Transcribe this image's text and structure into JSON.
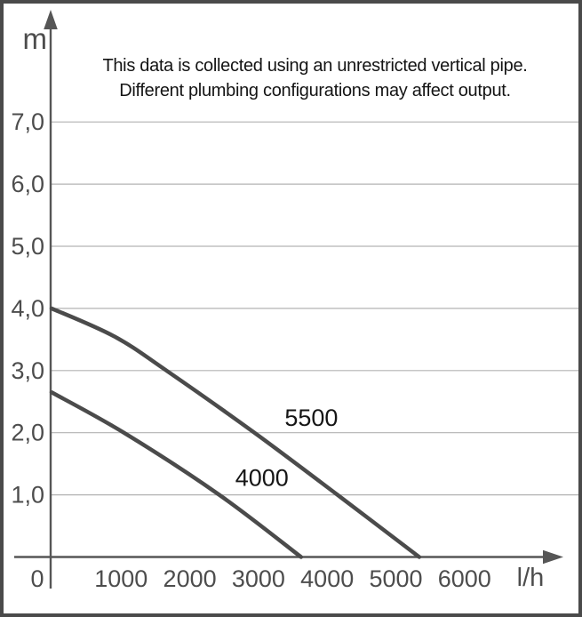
{
  "annotation": {
    "line1": "This data is collected using an unrestricted vertical pipe.",
    "line2": "Different plumbing configurations may affect output."
  },
  "chart_data": {
    "type": "line",
    "title": "",
    "xlabel": "l/h",
    "ylabel": "m",
    "xlim": [
      0,
      7400
    ],
    "ylim": [
      0,
      8
    ],
    "grid": "horizontal",
    "legend": "inline-curve-labels",
    "x_ticks": [
      {
        "value": 0,
        "label": "0"
      },
      {
        "value": 1000,
        "label": "1000"
      },
      {
        "value": 2000,
        "label": "2000"
      },
      {
        "value": 3000,
        "label": "3000"
      },
      {
        "value": 4000,
        "label": "4000"
      },
      {
        "value": 5000,
        "label": "5000"
      },
      {
        "value": 6000,
        "label": "6000"
      }
    ],
    "y_ticks": [
      {
        "value": 1,
        "label": "1,0"
      },
      {
        "value": 2,
        "label": "2,0"
      },
      {
        "value": 3,
        "label": "3,0"
      },
      {
        "value": 4,
        "label": "4,0"
      },
      {
        "value": 5,
        "label": "5,0"
      },
      {
        "value": 6,
        "label": "6,0"
      },
      {
        "value": 7,
        "label": "7,0"
      }
    ],
    "series": [
      {
        "name": "5500",
        "label": "5500",
        "label_at": [
          3770,
          2.24
        ],
        "points": [
          [
            0,
            4.0
          ],
          [
            900,
            3.55
          ],
          [
            1660,
            3.0
          ],
          [
            2940,
            2.0
          ],
          [
            4150,
            1.0
          ],
          [
            5340,
            0.0
          ]
        ]
      },
      {
        "name": "4000",
        "label": "4000",
        "label_at": [
          3050,
          1.27
        ],
        "points": [
          [
            0,
            2.65
          ],
          [
            1040,
            2.0
          ],
          [
            2430,
            1.0
          ],
          [
            3620,
            0.0
          ]
        ]
      }
    ],
    "colors": {
      "frame": "#4a4a4a",
      "axis": "#565656",
      "grid": "#b3b3b3",
      "curve": "#4b4b4b",
      "tick_text": "#4d4d4d",
      "curve_label_text": "#161616",
      "annotation_text": "#141414",
      "background": "#ffffff"
    }
  }
}
